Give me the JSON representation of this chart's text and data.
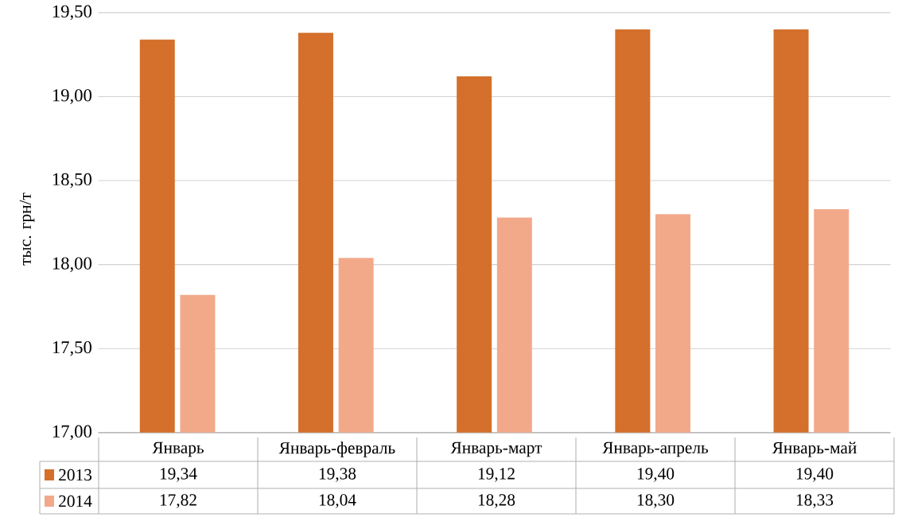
{
  "chart_data": {
    "type": "bar",
    "ylabel": "тыс. грн/т",
    "categories": [
      "Январь",
      "Январь-февраль",
      "Январь-март",
      "Январь-апрель",
      "Январь-май"
    ],
    "series": [
      {
        "name": "2013",
        "color": "#d4702b",
        "values": [
          19.34,
          19.38,
          19.12,
          19.4,
          19.4
        ],
        "value_labels": [
          "19,34",
          "19,38",
          "19,12",
          "19,40",
          "19,40"
        ]
      },
      {
        "name": "2014",
        "color": "#f2a98a",
        "values": [
          17.82,
          18.04,
          18.28,
          18.3,
          18.33
        ],
        "value_labels": [
          "17,82",
          "18,04",
          "18,28",
          "18,30",
          "18,33"
        ]
      }
    ],
    "ylim": [
      17,
      19.5
    ],
    "yticks": [
      {
        "value": 17,
        "label": "17,00"
      },
      {
        "value": 17.5,
        "label": "17,50"
      },
      {
        "value": 18,
        "label": "18,00"
      },
      {
        "value": 18.5,
        "label": "18,50"
      },
      {
        "value": 19,
        "label": "19,00"
      },
      {
        "value": 19.5,
        "label": "19,50"
      }
    ],
    "grid": "y",
    "legend": "bottom"
  }
}
